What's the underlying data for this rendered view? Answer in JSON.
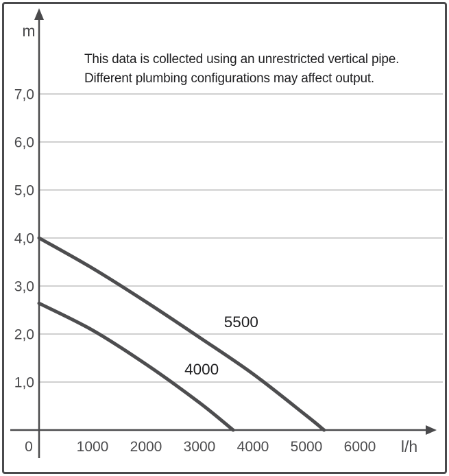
{
  "window": {
    "background": "#ffffff",
    "border_color": "#4a4a4c"
  },
  "annotation": {
    "line1": "This data is collected using an unrestricted vertical pipe.",
    "line2": "Different plumbing configurations may affect output."
  },
  "chart_data": {
    "type": "line",
    "title": "",
    "xlabel": "l/h",
    "ylabel": "m",
    "xlim": [
      0,
      6600
    ],
    "ylim": [
      0,
      7.7
    ],
    "grid": "horizontal-only",
    "legend_position": "inline-curve-labels",
    "x_ticks": [
      {
        "value": 0,
        "label": "0"
      },
      {
        "value": 1000,
        "label": "1000"
      },
      {
        "value": 2000,
        "label": "2000"
      },
      {
        "value": 3000,
        "label": "3000"
      },
      {
        "value": 4000,
        "label": "4000"
      },
      {
        "value": 5000,
        "label": "5000"
      },
      {
        "value": 6000,
        "label": "6000"
      }
    ],
    "y_ticks": [
      {
        "value": 1,
        "label": "1,0"
      },
      {
        "value": 2,
        "label": "2,0"
      },
      {
        "value": 3,
        "label": "3,0"
      },
      {
        "value": 4,
        "label": "4,0"
      },
      {
        "value": 5,
        "label": "5,0"
      },
      {
        "value": 6,
        "label": "6,0"
      },
      {
        "value": 7,
        "label": "7,0"
      }
    ],
    "series": [
      {
        "name": "5500",
        "label": "5500",
        "label_at": {
          "x": 3780,
          "y": 2.26
        },
        "points": [
          [
            0,
            4.0
          ],
          [
            1000,
            3.37
          ],
          [
            2000,
            2.67
          ],
          [
            3000,
            1.93
          ],
          [
            4000,
            1.17
          ],
          [
            5000,
            0.3
          ],
          [
            5330,
            0
          ]
        ]
      },
      {
        "name": "4000",
        "label": "4000",
        "label_at": {
          "x": 3040,
          "y": 1.27
        },
        "points": [
          [
            0,
            2.64
          ],
          [
            1000,
            2.08
          ],
          [
            2000,
            1.37
          ],
          [
            3000,
            0.57
          ],
          [
            3630,
            0
          ]
        ]
      }
    ],
    "colors": {
      "curve": "#4d4d4f",
      "axis": "#4a4a4c",
      "grid": "#b3b3b3",
      "tick_text": "#4a4a4c",
      "label_text": "#1d1d1f"
    }
  }
}
